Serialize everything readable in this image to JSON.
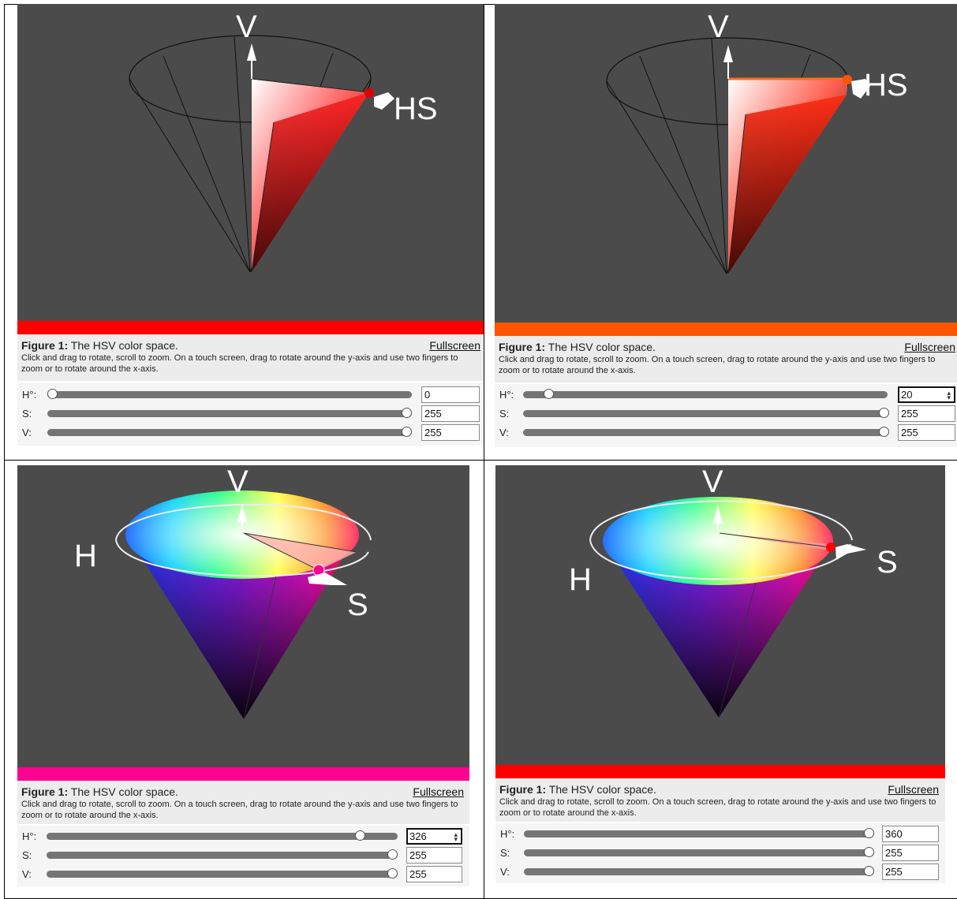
{
  "panels": [
    {
      "id": "top-left",
      "bar_color": "#ff0000",
      "caption": {
        "figure_label": "Figure 1:",
        "title": "The HSV color space.",
        "description": "Click and drag to rotate, scroll to zoom. On a touch screen, drag to rotate around the y-axis and use two fingers to zoom or to rotate around the x-axis.",
        "fullscreen": "Fullscreen"
      },
      "controls": [
        {
          "label": "H°:",
          "value": "0",
          "fraction": 0.0
        },
        {
          "label": "S:",
          "value": "255",
          "fraction": 1.0
        },
        {
          "label": "V:",
          "value": "255",
          "fraction": 1.0
        }
      ],
      "axes": {
        "v": "V",
        "h": "",
        "s": "HS"
      }
    },
    {
      "id": "top-right",
      "bar_color": "#ff5500",
      "caption": {
        "figure_label": "Figure 1:",
        "title": "The HSV color space.",
        "description": "Click and drag to rotate, scroll to zoom. On a touch screen, drag to rotate around the y-axis and use two fingers to zoom or to rotate around the x-axis.",
        "fullscreen": "Fullscreen"
      },
      "controls": [
        {
          "label": "H°:",
          "value": "20",
          "fraction": 0.056
        },
        {
          "label": "S:",
          "value": "255",
          "fraction": 1.0
        },
        {
          "label": "V:",
          "value": "255",
          "fraction": 1.0
        }
      ],
      "axes": {
        "v": "V",
        "h": "",
        "s": "HS"
      }
    },
    {
      "id": "bottom-left",
      "bar_color": "#ff0090",
      "caption": {
        "figure_label": "Figure 1:",
        "title": "The HSV color space.",
        "description": "Click and drag to rotate, scroll to zoom. On a touch screen, drag to rotate around the y-axis and use two fingers to zoom or to rotate around the x-axis.",
        "fullscreen": "Fullscreen"
      },
      "controls": [
        {
          "label": "H°:",
          "value": "326",
          "fraction": 0.906
        },
        {
          "label": "S:",
          "value": "255",
          "fraction": 1.0
        },
        {
          "label": "V:",
          "value": "255",
          "fraction": 1.0
        }
      ],
      "axes": {
        "v": "V",
        "h": "H",
        "s": "S"
      }
    },
    {
      "id": "bottom-right",
      "bar_color": "#ff0000",
      "caption": {
        "figure_label": "Figure 1:",
        "title": "The HSV color space.",
        "description": "Click and drag to rotate, scroll to zoom. On a touch screen, drag to rotate around the y-axis and use two fingers to zoom or to rotate around the x-axis.",
        "fullscreen": "Fullscreen"
      },
      "controls": [
        {
          "label": "H°:",
          "value": "360",
          "fraction": 1.0
        },
        {
          "label": "S:",
          "value": "255",
          "fraction": 1.0
        },
        {
          "label": "V:",
          "value": "255",
          "fraction": 1.0
        }
      ],
      "axes": {
        "v": "V",
        "h": "H",
        "s": "S"
      }
    }
  ]
}
